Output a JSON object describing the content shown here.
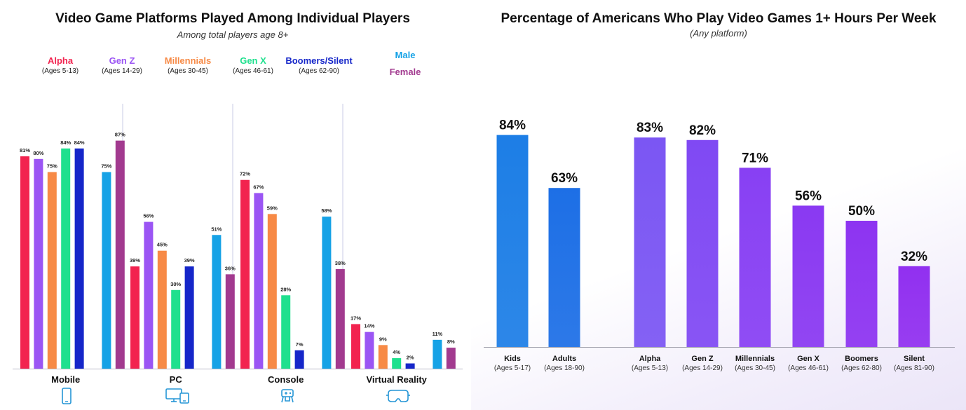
{
  "left": {
    "title": "Video Game Platforms Played Among Individual Players",
    "subtitle": "Among total players age 8+",
    "legend": [
      {
        "name": "Alpha",
        "ages": "(Ages 5-13)",
        "color": "#f2234f"
      },
      {
        "name": "Gen Z",
        "ages": "(Ages 14-29)",
        "color": "#9b55f4"
      },
      {
        "name": "Millennials",
        "ages": "(Ages 30-45)",
        "color": "#f78a46"
      },
      {
        "name": "Gen X",
        "ages": "(Ages 46-61)",
        "color": "#1fe08e"
      },
      {
        "name": "Boomers/Silent",
        "ages": "(Ages 62-90)",
        "color": "#1526c9"
      }
    ],
    "gender_legend": [
      {
        "name": "Male",
        "color": "#16a2e6"
      },
      {
        "name": "Female",
        "color": "#a23a8f"
      }
    ]
  },
  "right": {
    "title": "Percentage of Americans Who Play Video Games 1+ Hours Per Week",
    "subtitle": "(Any platform)"
  },
  "chart_data": [
    {
      "type": "bar",
      "title": "Video Game Platforms Played Among Individual Players",
      "subtitle": "Among total players age 8+",
      "categories": [
        "Mobile",
        "PC",
        "Console",
        "Virtual Reality"
      ],
      "category_icons": [
        "phone-icon",
        "computer-icon",
        "gamepad-icon",
        "vr-headset-icon"
      ],
      "series": [
        {
          "name": "Alpha",
          "color": "#f2234f",
          "values": [
            81,
            39,
            72,
            17
          ],
          "labels": [
            "81%",
            "39%",
            "72%",
            "17%"
          ]
        },
        {
          "name": "Gen Z",
          "color": "#9b55f4",
          "values": [
            80,
            56,
            67,
            14
          ],
          "labels": [
            "80%",
            "56%",
            "67%",
            "14%"
          ]
        },
        {
          "name": "Millennials",
          "color": "#f78a46",
          "values": [
            75,
            45,
            59,
            9
          ],
          "labels": [
            "75%",
            "45%",
            "59%",
            "9%"
          ]
        },
        {
          "name": "Gen X",
          "color": "#1fe08e",
          "values": [
            84,
            30,
            28,
            4
          ],
          "labels": [
            "84%",
            "30%",
            "28%",
            "4%"
          ]
        },
        {
          "name": "Boomers/Silent",
          "color": "#1526c9",
          "values": [
            84,
            39,
            7,
            2
          ],
          "labels": [
            "84%",
            "39%",
            "7%",
            "2%"
          ]
        },
        {
          "name": "Male",
          "color": "#16a2e6",
          "values": [
            75,
            51,
            58,
            11
          ],
          "labels": [
            "75%",
            "51%",
            "58%",
            "11%"
          ]
        },
        {
          "name": "Female",
          "color": "#a23a8f",
          "values": [
            87,
            36,
            38,
            8
          ],
          "labels": [
            "87%",
            "36%",
            "38%",
            "8%"
          ]
        }
      ],
      "ylim": [
        0,
        100
      ]
    },
    {
      "type": "bar",
      "title": "Percentage of Americans Who Play Video Games 1+ Hours Per Week",
      "subtitle": "(Any platform)",
      "categories": [
        "Kids",
        "Adults",
        "Alpha",
        "Gen Z",
        "Millennials",
        "Gen X",
        "Boomers",
        "Silent"
      ],
      "category_sublabels": [
        "(Ages 5-17)",
        "(Ages 18-90)",
        "(Ages 5-13)",
        "(Ages 14-29)",
        "(Ages 30-45)",
        "(Ages 46-61)",
        "(Ages 62-80)",
        "(Ages 81-90)"
      ],
      "values": [
        84,
        63,
        83,
        82,
        71,
        56,
        50,
        32
      ],
      "labels": [
        "84%",
        "63%",
        "83%",
        "82%",
        "71%",
        "56%",
        "50%",
        "32%"
      ],
      "colors": [
        "#1d7ee6",
        "#1d6fe6",
        "#7b56f3",
        "#8049f3",
        "#8840f3",
        "#8a39f2",
        "#8d34f1",
        "#9130f0"
      ],
      "ylim": [
        0,
        100
      ]
    }
  ]
}
